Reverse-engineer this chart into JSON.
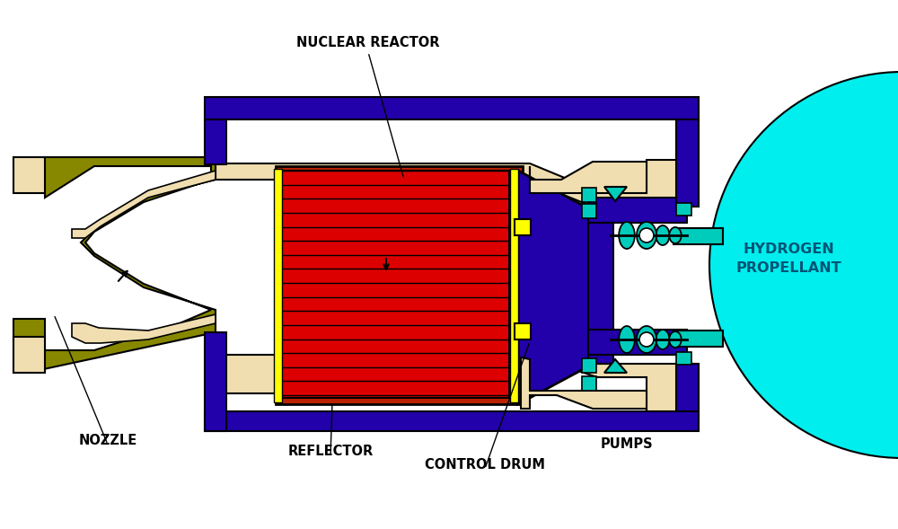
{
  "bg_color": "#ffffff",
  "colors": {
    "purple": "#2200AA",
    "olive": "#888800",
    "red": "#DD0000",
    "dark_red": "#BB2200",
    "beige": "#F0DEB0",
    "yellow": "#FFFF00",
    "cyan": "#00CCBB",
    "cyan_light": "#00EEEE",
    "black": "#000000",
    "white": "#ffffff",
    "dark_outline": "#111111"
  },
  "labels": {
    "nuclear_reactor": "NUCLEAR REACTOR",
    "nozzle": "NOZZLE",
    "reflector": "REFLECTOR",
    "control_drum": "CONTROL DRUM",
    "pumps": "PUMPS",
    "hydrogen": "HYDROGEN\nPROPELLANT"
  },
  "label_fontsize": 10.5,
  "label_color": "#000000"
}
